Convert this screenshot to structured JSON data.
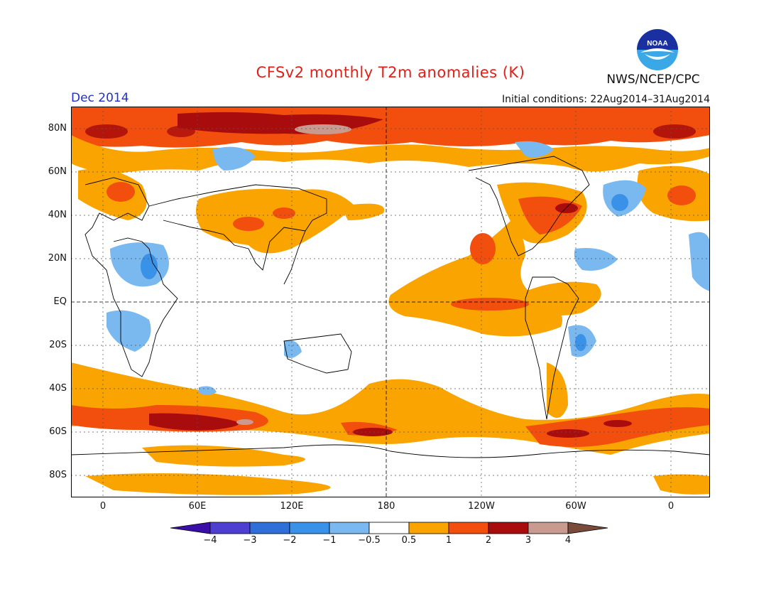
{
  "header": {
    "title": "CFSv2 monthly T2m anomalies (K)",
    "month": "Dec 2014",
    "initial_conditions": "Initial conditions: 22Aug2014–31Aug2014",
    "agency": "NWS/NCEP/CPC",
    "logo_text": "NOAA",
    "logo_icon": "noaa-seagull-logo-icon"
  },
  "axes": {
    "x_ticks": [
      "0",
      "60E",
      "120E",
      "180",
      "120W",
      "60W",
      "0"
    ],
    "y_ticks": [
      "80N",
      "60N",
      "40N",
      "20N",
      "EQ",
      "20S",
      "40S",
      "60S",
      "80S"
    ]
  },
  "colorbar": {
    "labels": [
      "−4",
      "−3",
      "−2",
      "−1",
      "−0.5",
      "0.5",
      "1",
      "2",
      "3",
      "4"
    ],
    "colors": [
      "#3a0fa8",
      "#4f3fd0",
      "#2f6fd8",
      "#3a92e8",
      "#7ab8f0",
      "#ffffff",
      "#f9a400",
      "#f24e0d",
      "#a80c0c",
      "#c99a90",
      "#7a4a3a"
    ]
  }
}
